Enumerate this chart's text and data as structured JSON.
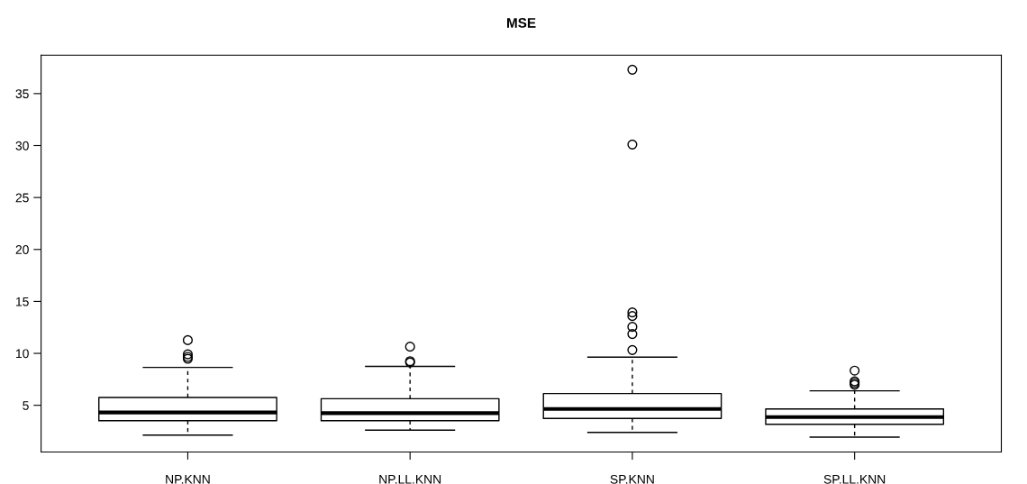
{
  "chart_data": {
    "type": "box",
    "title": "MSE",
    "categories": [
      "NP.KNN",
      "NP.LL.KNN",
      "SP.KNN",
      "SP.LL.KNN"
    ],
    "boxes": [
      {
        "low": 2.13,
        "q1": 3.52,
        "median": 4.31,
        "q3": 5.75,
        "high": 8.65,
        "outliers": [
          11.27,
          9.91,
          9.66,
          9.48
        ]
      },
      {
        "low": 2.61,
        "q1": 3.52,
        "median": 4.25,
        "q3": 5.63,
        "high": 8.75,
        "outliers": [
          10.64,
          9.25,
          9.13
        ]
      },
      {
        "low": 2.39,
        "q1": 3.74,
        "median": 4.65,
        "q3": 6.13,
        "high": 9.63,
        "outliers": [
          10.32,
          11.86,
          12.55,
          13.59,
          13.94,
          30.1,
          37.3
        ]
      },
      {
        "low": 1.94,
        "q1": 3.17,
        "median": 3.87,
        "q3": 4.65,
        "high": 6.39,
        "outliers": [
          8.34,
          7.3,
          7.14,
          6.98
        ]
      }
    ],
    "ylim": [
      0.5,
      38.7
    ],
    "yticks": [
      5,
      10,
      15,
      20,
      25,
      30,
      35
    ],
    "grid": false
  }
}
